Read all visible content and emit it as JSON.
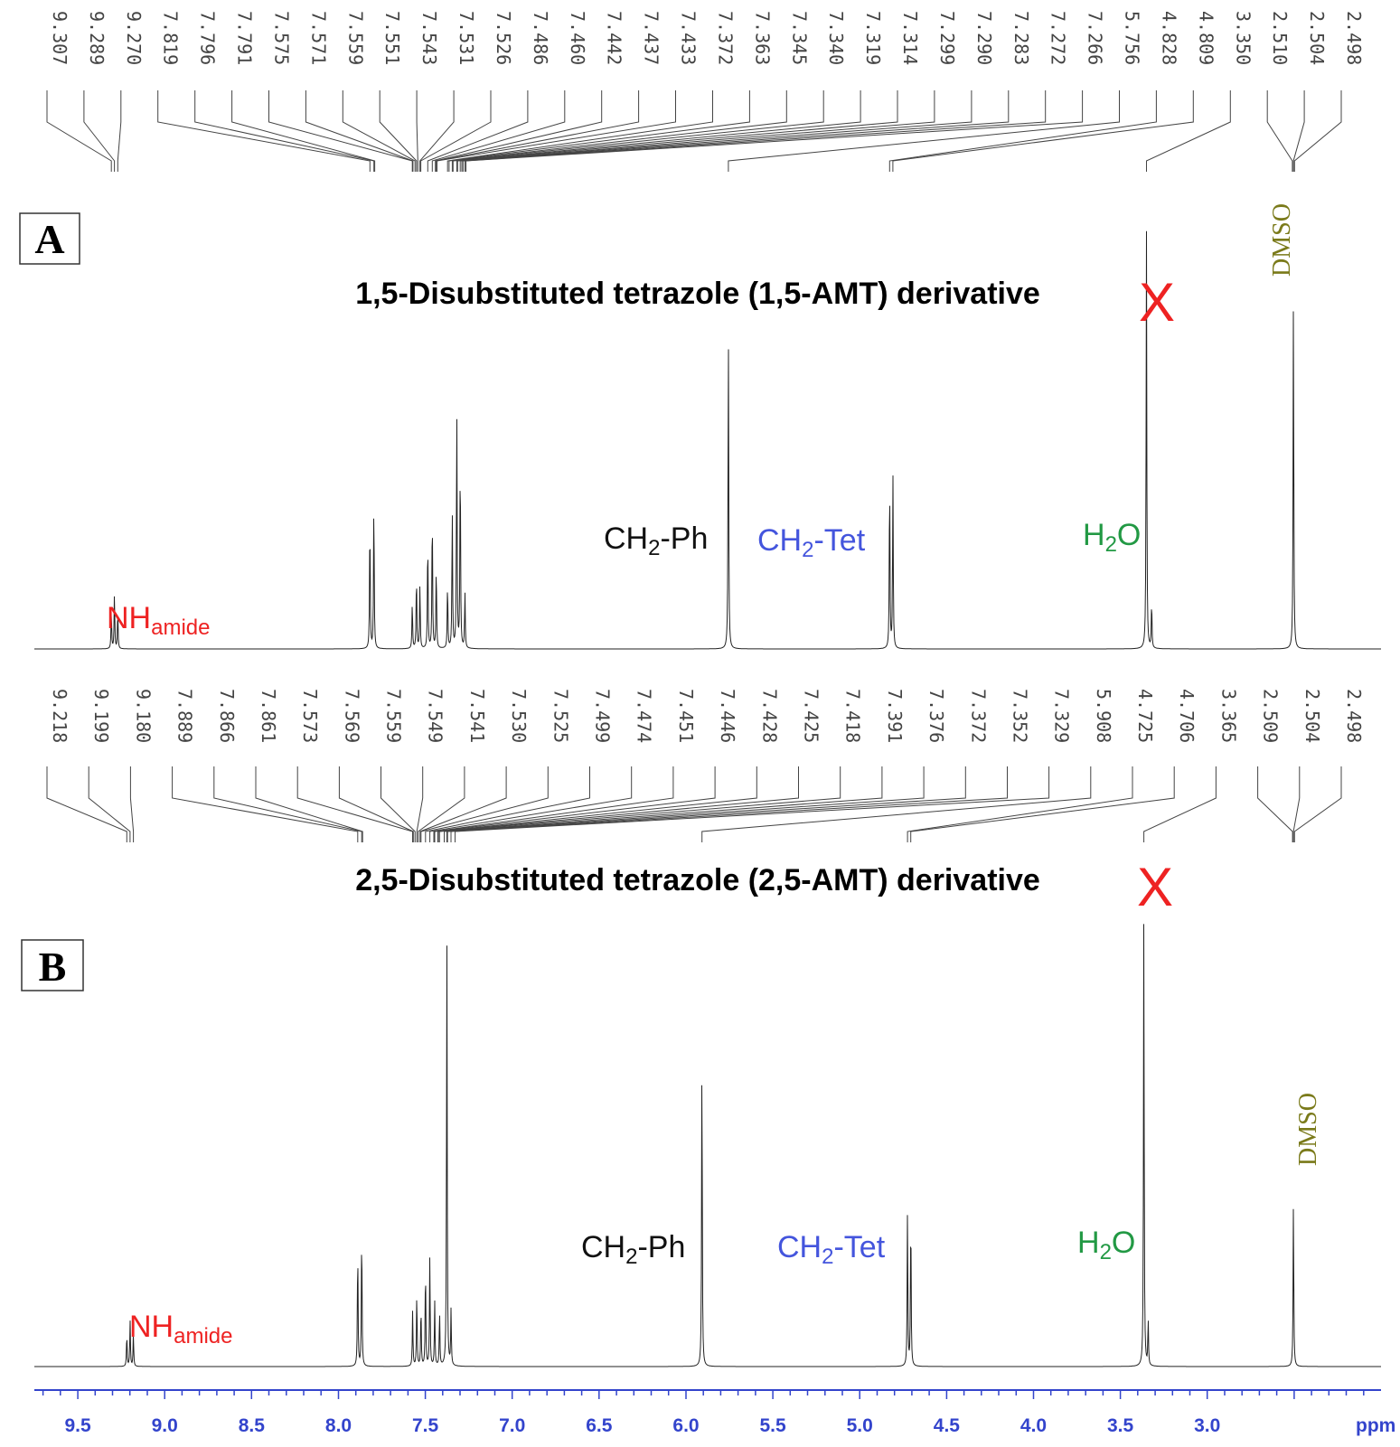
{
  "chart_data": {
    "type": "line",
    "x_axis": {
      "range": [
        9.75,
        2.0
      ],
      "reversed": true,
      "ticks": [
        "9.5",
        "9.0",
        "8.5",
        "8.0",
        "7.5",
        "7.0",
        "6.5",
        "6.0",
        "5.5",
        "5.0",
        "4.5",
        "4.0",
        "3.5",
        "3.0"
      ],
      "unit_label": "ppm",
      "color": "#3344cc"
    },
    "spectra": [
      {
        "id": "A",
        "box_label": "A",
        "title": "1,5-Disubstituted tetrazole (1,5-AMT) derivative",
        "peak_list": [
          "9.307",
          "9.289",
          "9.270",
          "7.819",
          "7.796",
          "7.791",
          "7.575",
          "7.571",
          "7.559",
          "7.551",
          "7.543",
          "7.531",
          "7.526",
          "7.486",
          "7.460",
          "7.442",
          "7.437",
          "7.433",
          "7.372",
          "7.363",
          "7.345",
          "7.340",
          "7.319",
          "7.314",
          "7.299",
          "7.290",
          "7.283",
          "7.272",
          "7.266",
          "5.756",
          "4.828",
          "4.809",
          "3.350",
          "2.510",
          "2.504",
          "2.498"
        ],
        "peaks": [
          {
            "ppm": 9.307,
            "h": 0.08
          },
          {
            "ppm": 9.289,
            "h": 0.12
          },
          {
            "ppm": 9.27,
            "h": 0.08
          },
          {
            "ppm": 7.819,
            "h": 0.28
          },
          {
            "ppm": 7.796,
            "h": 0.32
          },
          {
            "ppm": 7.575,
            "h": 0.1
          },
          {
            "ppm": 7.551,
            "h": 0.16
          },
          {
            "ppm": 7.531,
            "h": 0.14
          },
          {
            "ppm": 7.486,
            "h": 0.24
          },
          {
            "ppm": 7.46,
            "h": 0.3
          },
          {
            "ppm": 7.437,
            "h": 0.18
          },
          {
            "ppm": 7.372,
            "h": 0.14
          },
          {
            "ppm": 7.345,
            "h": 0.3
          },
          {
            "ppm": 7.319,
            "h": 0.52
          },
          {
            "ppm": 7.299,
            "h": 0.42
          },
          {
            "ppm": 7.272,
            "h": 0.12
          },
          {
            "ppm": 5.756,
            "h": 0.69
          },
          {
            "ppm": 4.828,
            "h": 0.37
          },
          {
            "ppm": 4.809,
            "h": 0.37
          },
          {
            "ppm": 3.35,
            "h": 0.9
          },
          {
            "ppm": 3.32,
            "h": 0.1
          },
          {
            "ppm": 2.504,
            "h": 0.76
          }
        ],
        "annotations": {
          "nh": {
            "main": "NH",
            "sub": "amide",
            "color": "#ee2222"
          },
          "ch2ph": {
            "main": "CH",
            "sub": "2",
            "tail": "-Ph",
            "color": "#111111"
          },
          "ch2tet": {
            "main": "CH",
            "sub": "2",
            "tail": "-Tet",
            "color": "#4455dd"
          },
          "h2o": {
            "main": "H",
            "sub": "2",
            "tail": "O",
            "color": "#229944"
          },
          "dmso": {
            "text": "DMSO",
            "color": "#7a7a1a"
          },
          "water_cross": {
            "text": "X",
            "color": "#ee2222"
          }
        }
      },
      {
        "id": "B",
        "box_label": "B",
        "title": "2,5-Disubstituted tetrazole (2,5-AMT) derivative",
        "peak_list": [
          "9.218",
          "9.199",
          "9.180",
          "7.889",
          "7.866",
          "7.861",
          "7.573",
          "7.569",
          "7.559",
          "7.549",
          "7.541",
          "7.530",
          "7.525",
          "7.499",
          "7.474",
          "7.451",
          "7.446",
          "7.428",
          "7.425",
          "7.418",
          "7.391",
          "7.376",
          "7.372",
          "7.352",
          "7.329",
          "5.908",
          "4.725",
          "4.706",
          "3.365",
          "2.509",
          "2.504",
          "2.498"
        ],
        "peaks": [
          {
            "ppm": 9.218,
            "h": 0.07
          },
          {
            "ppm": 9.199,
            "h": 0.1
          },
          {
            "ppm": 9.18,
            "h": 0.07
          },
          {
            "ppm": 7.889,
            "h": 0.26
          },
          {
            "ppm": 7.866,
            "h": 0.3
          },
          {
            "ppm": 7.573,
            "h": 0.12
          },
          {
            "ppm": 7.549,
            "h": 0.16
          },
          {
            "ppm": 7.525,
            "h": 0.13
          },
          {
            "ppm": 7.499,
            "h": 0.22
          },
          {
            "ppm": 7.474,
            "h": 0.24
          },
          {
            "ppm": 7.446,
            "h": 0.14
          },
          {
            "ppm": 7.418,
            "h": 0.12
          },
          {
            "ppm": 7.376,
            "h": 0.94
          },
          {
            "ppm": 7.352,
            "h": 0.12
          },
          {
            "ppm": 5.908,
            "h": 0.69
          },
          {
            "ppm": 4.725,
            "h": 0.34
          },
          {
            "ppm": 4.706,
            "h": 0.34
          },
          {
            "ppm": 3.365,
            "h": 0.98
          },
          {
            "ppm": 3.34,
            "h": 0.1
          },
          {
            "ppm": 2.504,
            "h": 0.36
          }
        ],
        "annotations": {
          "nh": {
            "main": "NH",
            "sub": "amide",
            "color": "#ee2222"
          },
          "ch2ph": {
            "main": "CH",
            "sub": "2",
            "tail": "-Ph",
            "color": "#111111"
          },
          "ch2tet": {
            "main": "CH",
            "sub": "2",
            "tail": "-Tet",
            "color": "#4455dd"
          },
          "h2o": {
            "main": "H",
            "sub": "2",
            "tail": "O",
            "color": "#229944"
          },
          "dmso": {
            "text": "DMSO",
            "color": "#7a7a1a"
          },
          "water_cross": {
            "text": "X",
            "color": "#ee2222"
          }
        }
      }
    ]
  }
}
